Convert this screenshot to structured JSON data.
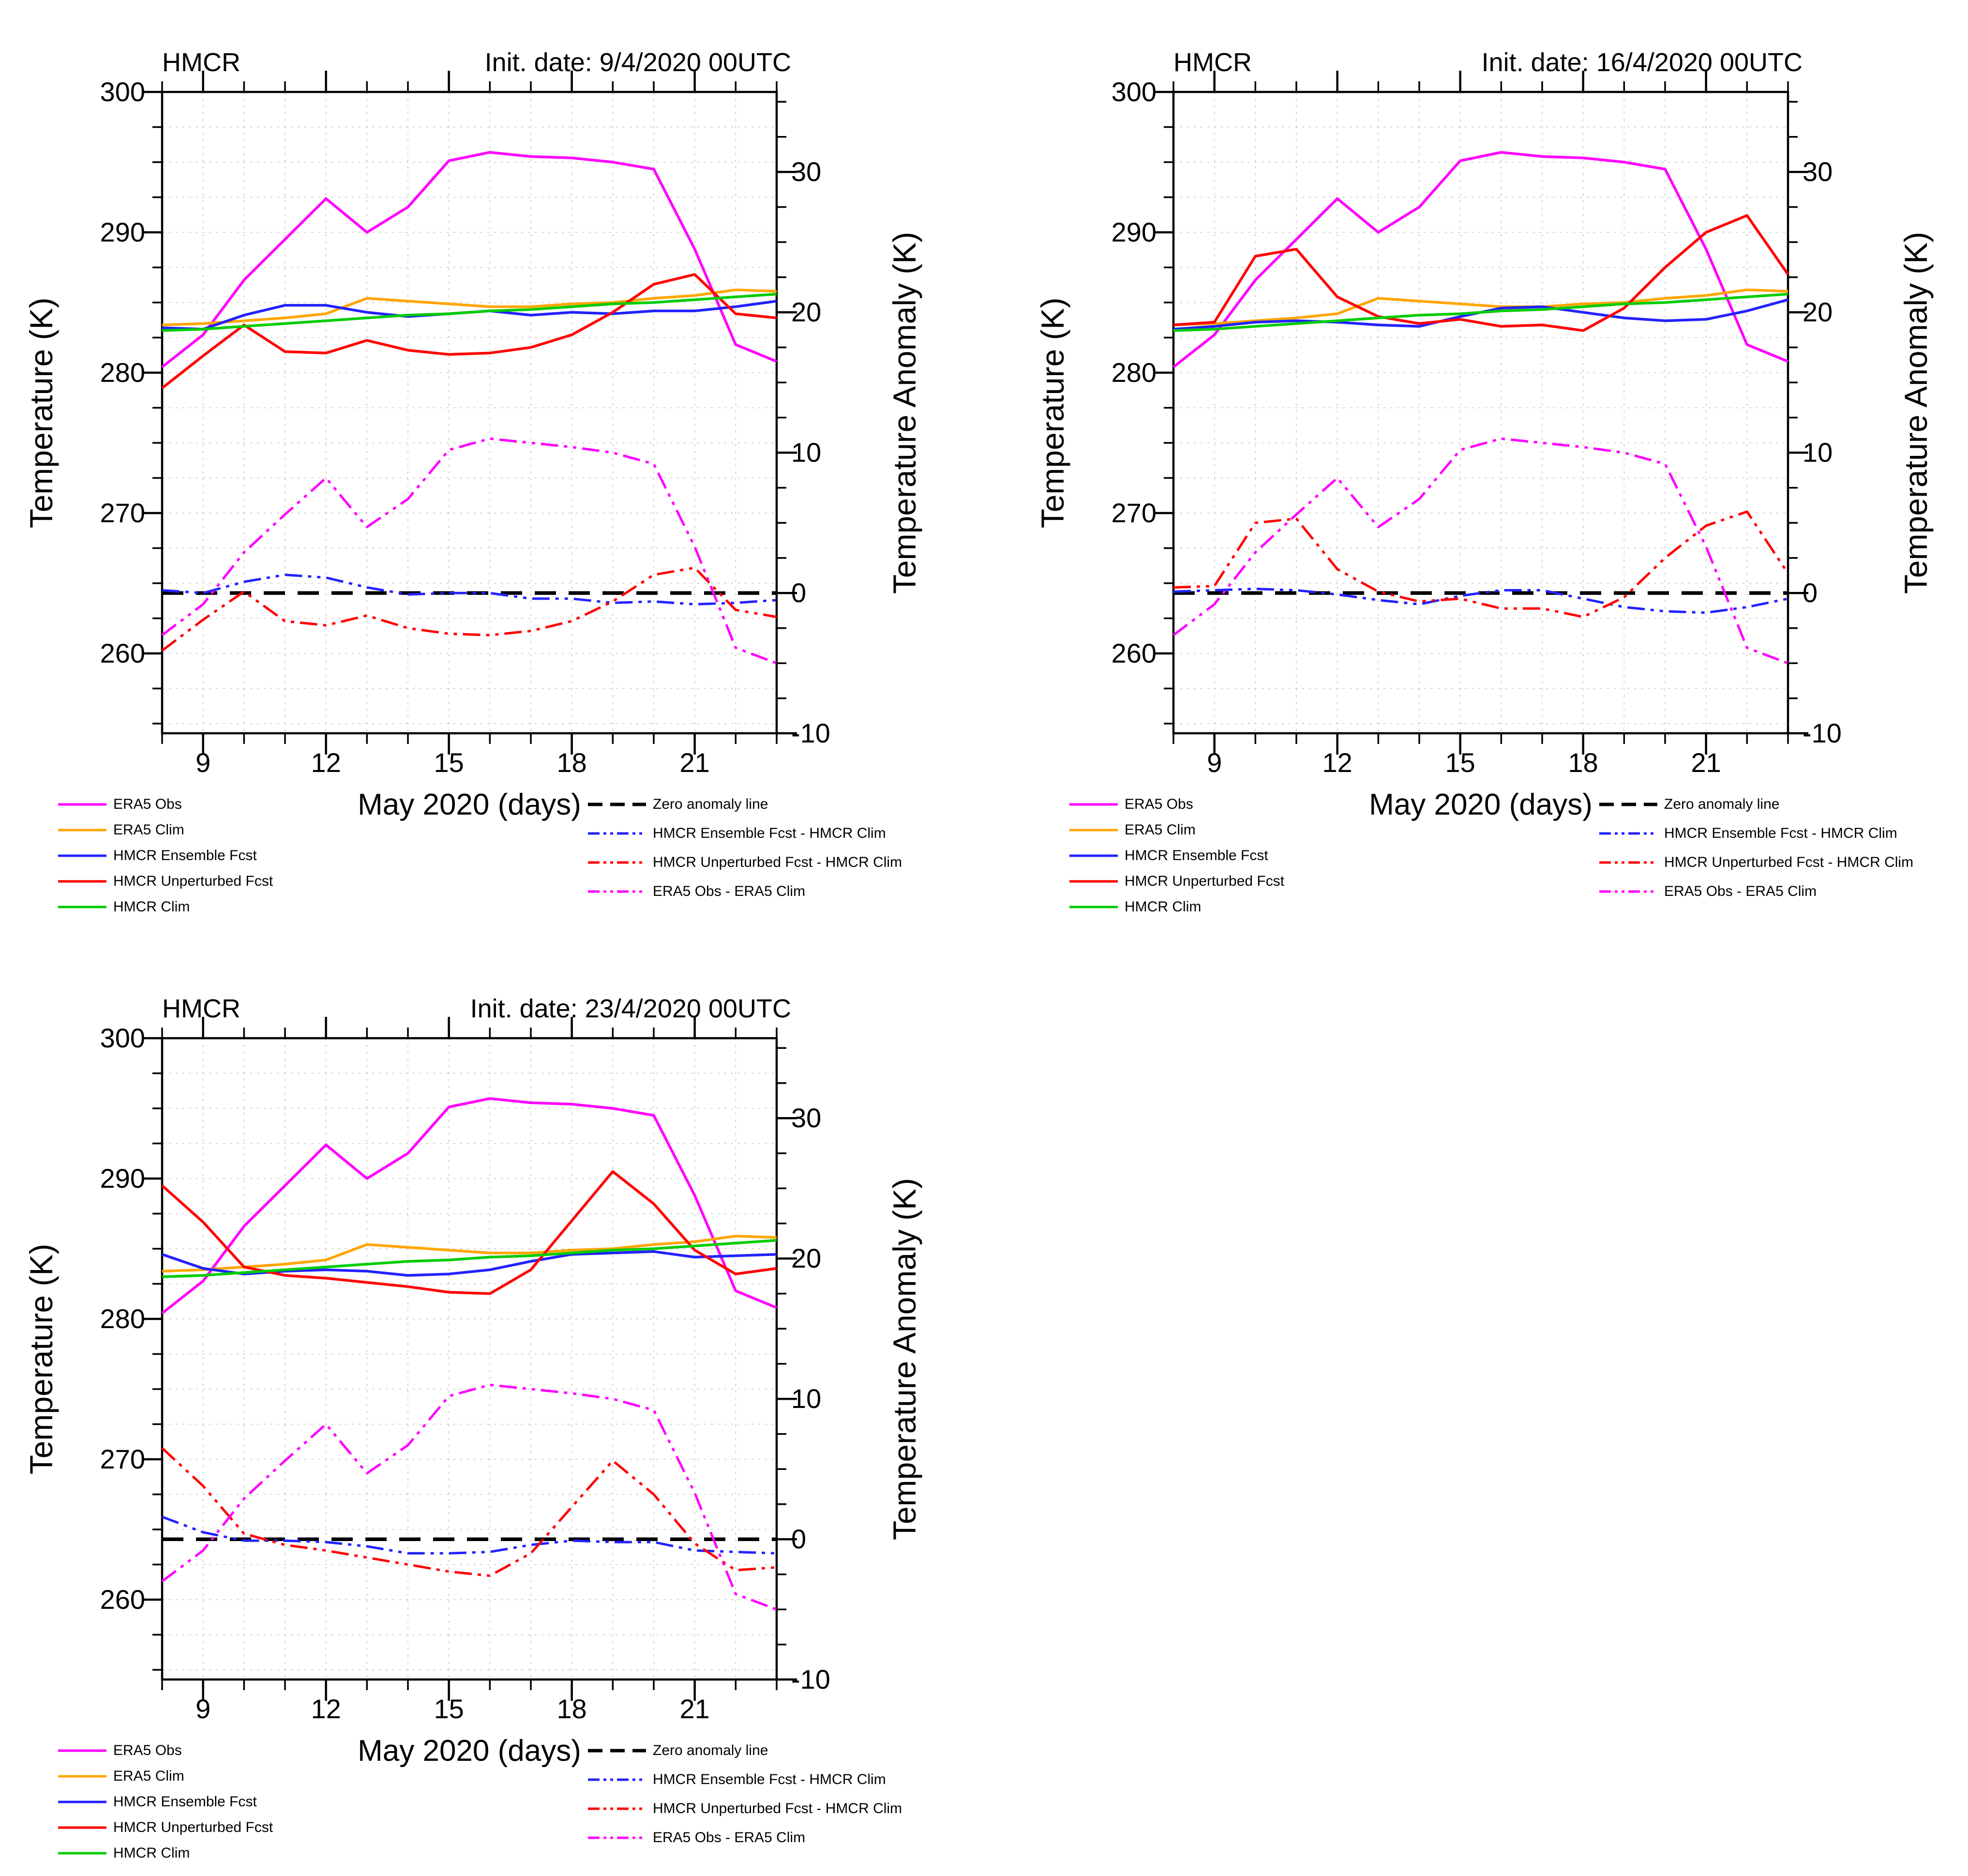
{
  "figure": {
    "description": "Three-panel temperature forecast verification plots",
    "panel_model_label": "HMCR"
  },
  "colors": {
    "magenta": "#ff00ff",
    "orange": "#ffa500",
    "blue": "#2222ff",
    "red": "#ff0000",
    "green": "#00cc00",
    "black": "#000000",
    "grid": "#c4c4c4"
  },
  "axes": {
    "y_left": {
      "title": "Temperature (K)",
      "tick_labels": [
        "300",
        "290",
        "280",
        "270",
        "260"
      ],
      "tick_values": [
        300,
        290,
        280,
        270,
        260
      ],
      "minor_step": 2.5,
      "range": [
        254.3,
        300
      ]
    },
    "y_right": {
      "title": "Temperature Anomaly (K)",
      "tick_labels": [
        "30",
        "20",
        "10",
        "0",
        "-10"
      ],
      "tick_values": [
        30,
        20,
        10,
        0,
        -10
      ],
      "minor_step": 2.5,
      "range": [
        -10,
        35.7
      ],
      "zero_anomaly_temp": 264.3
    },
    "x": {
      "title": "May 2020 (days)",
      "tick_labels": [
        "9",
        "12",
        "15",
        "18",
        "21"
      ],
      "tick_values": [
        9,
        12,
        15,
        18,
        21
      ],
      "range": [
        8,
        23
      ]
    }
  },
  "legend": {
    "left": [
      {
        "label": "ERA5 Obs",
        "color": "magenta",
        "style": "solid"
      },
      {
        "label": "ERA5 Clim",
        "color": "orange",
        "style": "solid"
      },
      {
        "label": "HMCR Ensemble Fcst",
        "color": "blue",
        "style": "solid"
      },
      {
        "label": "HMCR Unperturbed Fcst",
        "color": "red",
        "style": "solid"
      },
      {
        "label": "HMCR Clim",
        "color": "green",
        "style": "solid"
      }
    ],
    "right": [
      {
        "label": "Zero anomaly line",
        "color": "black",
        "style": "dashed"
      },
      {
        "label": "HMCR Ensemble Fcst - HMCR Clim",
        "color": "blue",
        "style": "dashdotdot"
      },
      {
        "label": "HMCR Unperturbed Fcst - HMCR Clim",
        "color": "red",
        "style": "dashdotdot"
      },
      {
        "label": "ERA5 Obs - ERA5 Clim",
        "color": "magenta",
        "style": "dashdotdot"
      }
    ]
  },
  "chart_data": [
    {
      "type": "line",
      "title_left": "HMCR",
      "title_right": "Init. date: 9/4/2020 00UTC",
      "xlabel": "May 2020 (days)",
      "ylabel_left": "Temperature (K)",
      "ylabel_right": "Temperature Anomaly (K)",
      "x": [
        8,
        9,
        10,
        11,
        12,
        13,
        14,
        15,
        16,
        17,
        18,
        19,
        20,
        21,
        22,
        23
      ],
      "ylim_left": [
        254.3,
        300
      ],
      "ylim_right": [
        -10,
        35.7
      ],
      "series": [
        {
          "name": "ERA5 Obs",
          "color": "magenta",
          "style": "solid",
          "axis": "left",
          "values": [
            280.4,
            282.7,
            286.6,
            289.5,
            292.4,
            290.0,
            291.8,
            295.1,
            295.7,
            295.4,
            295.3,
            295.0,
            294.5,
            288.8,
            282.0,
            280.8
          ]
        },
        {
          "name": "ERA5 Clim",
          "color": "orange",
          "style": "solid",
          "axis": "left",
          "values": [
            283.4,
            283.5,
            283.7,
            283.9,
            284.2,
            285.3,
            285.1,
            284.9,
            284.7,
            284.7,
            284.9,
            285.0,
            285.3,
            285.5,
            285.9,
            285.8
          ]
        },
        {
          "name": "HMCR Ensemble Fcst",
          "color": "blue",
          "style": "solid",
          "axis": "left",
          "values": [
            283.2,
            283.1,
            284.1,
            284.8,
            284.8,
            284.3,
            284.0,
            284.2,
            284.4,
            284.1,
            284.3,
            284.2,
            284.4,
            284.4,
            284.7,
            285.1
          ]
        },
        {
          "name": "HMCR Unperturbed Fcst",
          "color": "red",
          "style": "solid",
          "axis": "left",
          "values": [
            278.9,
            281.2,
            283.4,
            281.5,
            281.4,
            282.3,
            281.6,
            281.3,
            281.4,
            281.8,
            282.7,
            284.3,
            286.3,
            287.0,
            284.2,
            283.9
          ]
        },
        {
          "name": "HMCR Clim",
          "color": "green",
          "style": "solid",
          "axis": "left",
          "values": [
            283.0,
            283.1,
            283.3,
            283.5,
            283.7,
            283.9,
            284.1,
            284.2,
            284.4,
            284.5,
            284.7,
            284.9,
            285.0,
            285.2,
            285.4,
            285.6
          ]
        },
        {
          "name": "Zero anomaly line",
          "color": "black",
          "style": "dashed",
          "axis": "right",
          "values": [
            0,
            0,
            0,
            0,
            0,
            0,
            0,
            0,
            0,
            0,
            0,
            0,
            0,
            0,
            0,
            0
          ]
        },
        {
          "name": "HMCR Ensemble Fcst - HMCR Clim",
          "color": "blue",
          "style": "dashdotdot",
          "axis": "right",
          "values": [
            0.2,
            0.0,
            0.8,
            1.3,
            1.1,
            0.4,
            -0.1,
            0.0,
            0.0,
            -0.4,
            -0.4,
            -0.7,
            -0.6,
            -0.8,
            -0.7,
            -0.5
          ]
        },
        {
          "name": "HMCR Unperturbed Fcst - HMCR Clim",
          "color": "red",
          "style": "dashdotdot",
          "axis": "right",
          "values": [
            -4.1,
            -1.9,
            0.1,
            -2.0,
            -2.3,
            -1.6,
            -2.5,
            -2.9,
            -3.0,
            -2.7,
            -2.0,
            -0.6,
            1.3,
            1.8,
            -1.2,
            -1.7
          ]
        },
        {
          "name": "ERA5 Obs - ERA5 Clim",
          "color": "magenta",
          "style": "dashdotdot",
          "axis": "right",
          "values": [
            -3.0,
            -0.8,
            2.9,
            5.6,
            8.2,
            4.7,
            6.7,
            10.2,
            11.0,
            10.7,
            10.4,
            10.0,
            9.2,
            3.3,
            -3.9,
            -5.0
          ]
        }
      ]
    },
    {
      "type": "line",
      "title_left": "HMCR",
      "title_right": "Init. date: 16/4/2020 00UTC",
      "xlabel": "May 2020 (days)",
      "ylabel_left": "Temperature (K)",
      "ylabel_right": "Temperature Anomaly (K)",
      "x": [
        8,
        9,
        10,
        11,
        12,
        13,
        14,
        15,
        16,
        17,
        18,
        19,
        20,
        21,
        22,
        23
      ],
      "ylim_left": [
        254.3,
        300
      ],
      "ylim_right": [
        -10,
        35.7
      ],
      "series": [
        {
          "name": "ERA5 Obs",
          "color": "magenta",
          "style": "solid",
          "axis": "left",
          "values": [
            280.4,
            282.7,
            286.6,
            289.5,
            292.4,
            290.0,
            291.8,
            295.1,
            295.7,
            295.4,
            295.3,
            295.0,
            294.5,
            288.8,
            282.0,
            280.8
          ]
        },
        {
          "name": "ERA5 Clim",
          "color": "orange",
          "style": "solid",
          "axis": "left",
          "values": [
            283.4,
            283.5,
            283.7,
            283.9,
            284.2,
            285.3,
            285.1,
            284.9,
            284.7,
            284.7,
            284.9,
            285.0,
            285.3,
            285.5,
            285.9,
            285.8
          ]
        },
        {
          "name": "HMCR Ensemble Fcst",
          "color": "blue",
          "style": "solid",
          "axis": "left",
          "values": [
            283.1,
            283.3,
            283.6,
            283.7,
            283.6,
            283.4,
            283.3,
            284.0,
            284.6,
            284.7,
            284.3,
            283.9,
            283.7,
            283.8,
            284.4,
            285.2
          ]
        },
        {
          "name": "HMCR Unperturbed Fcst",
          "color": "red",
          "style": "solid",
          "axis": "left",
          "values": [
            283.4,
            283.6,
            288.3,
            288.8,
            285.4,
            284.0,
            283.5,
            283.8,
            283.3,
            283.4,
            283.0,
            284.6,
            287.5,
            290.0,
            291.2,
            287.0
          ]
        },
        {
          "name": "HMCR Clim",
          "color": "green",
          "style": "solid",
          "axis": "left",
          "values": [
            283.0,
            283.1,
            283.3,
            283.5,
            283.7,
            283.9,
            284.1,
            284.2,
            284.4,
            284.5,
            284.7,
            284.9,
            285.0,
            285.2,
            285.4,
            285.6
          ]
        },
        {
          "name": "Zero anomaly line",
          "color": "black",
          "style": "dashed",
          "axis": "right",
          "values": [
            0,
            0,
            0,
            0,
            0,
            0,
            0,
            0,
            0,
            0,
            0,
            0,
            0,
            0,
            0,
            0
          ]
        },
        {
          "name": "HMCR Ensemble Fcst - HMCR Clim",
          "color": "blue",
          "style": "dashdotdot",
          "axis": "right",
          "values": [
            0.1,
            0.2,
            0.3,
            0.2,
            -0.1,
            -0.5,
            -0.8,
            -0.2,
            0.2,
            0.2,
            -0.4,
            -1.0,
            -1.3,
            -1.4,
            -1.0,
            -0.4
          ]
        },
        {
          "name": "HMCR Unperturbed Fcst - HMCR Clim",
          "color": "red",
          "style": "dashdotdot",
          "axis": "right",
          "values": [
            0.4,
            0.5,
            5.0,
            5.3,
            1.7,
            0.1,
            -0.6,
            -0.4,
            -1.1,
            -1.1,
            -1.7,
            -0.3,
            2.5,
            4.8,
            5.8,
            1.4
          ]
        },
        {
          "name": "ERA5 Obs - ERA5 Clim",
          "color": "magenta",
          "style": "dashdotdot",
          "axis": "right",
          "values": [
            -3.0,
            -0.8,
            2.9,
            5.6,
            8.2,
            4.7,
            6.7,
            10.2,
            11.0,
            10.7,
            10.4,
            10.0,
            9.2,
            3.3,
            -3.9,
            -5.0
          ]
        }
      ]
    },
    {
      "type": "line",
      "title_left": "HMCR",
      "title_right": "Init. date: 23/4/2020 00UTC",
      "xlabel": "May 2020 (days)",
      "ylabel_left": "Temperature (K)",
      "ylabel_right": "Temperature Anomaly (K)",
      "x": [
        8,
        9,
        10,
        11,
        12,
        13,
        14,
        15,
        16,
        17,
        18,
        19,
        20,
        21,
        22,
        23
      ],
      "ylim_left": [
        254.3,
        300
      ],
      "ylim_right": [
        -10,
        35.7
      ],
      "series": [
        {
          "name": "ERA5 Obs",
          "color": "magenta",
          "style": "solid",
          "axis": "left",
          "values": [
            280.4,
            282.7,
            286.6,
            289.5,
            292.4,
            290.0,
            291.8,
            295.1,
            295.7,
            295.4,
            295.3,
            295.0,
            294.5,
            288.8,
            282.0,
            280.8
          ]
        },
        {
          "name": "ERA5 Clim",
          "color": "orange",
          "style": "solid",
          "axis": "left",
          "values": [
            283.4,
            283.5,
            283.7,
            283.9,
            284.2,
            285.3,
            285.1,
            284.9,
            284.7,
            284.7,
            284.9,
            285.0,
            285.3,
            285.5,
            285.9,
            285.8
          ]
        },
        {
          "name": "HMCR Ensemble Fcst",
          "color": "blue",
          "style": "solid",
          "axis": "left",
          "values": [
            284.6,
            283.6,
            283.2,
            283.4,
            283.5,
            283.4,
            283.1,
            283.2,
            283.5,
            284.1,
            284.6,
            284.7,
            284.8,
            284.4,
            284.5,
            284.6
          ]
        },
        {
          "name": "HMCR Unperturbed Fcst",
          "color": "red",
          "style": "solid",
          "axis": "left",
          "values": [
            289.5,
            286.9,
            283.7,
            283.1,
            282.9,
            282.6,
            282.3,
            281.9,
            281.8,
            283.5,
            287.0,
            290.5,
            288.2,
            284.9,
            283.2,
            283.6
          ]
        },
        {
          "name": "HMCR Clim",
          "color": "green",
          "style": "solid",
          "axis": "left",
          "values": [
            283.0,
            283.1,
            283.3,
            283.5,
            283.7,
            283.9,
            284.1,
            284.2,
            284.4,
            284.5,
            284.7,
            284.9,
            285.0,
            285.2,
            285.4,
            285.6
          ]
        },
        {
          "name": "Zero anomaly line",
          "color": "black",
          "style": "dashed",
          "axis": "right",
          "values": [
            0,
            0,
            0,
            0,
            0,
            0,
            0,
            0,
            0,
            0,
            0,
            0,
            0,
            0,
            0,
            0
          ]
        },
        {
          "name": "HMCR Ensemble Fcst - HMCR Clim",
          "color": "blue",
          "style": "dashdotdot",
          "axis": "right",
          "values": [
            1.6,
            0.5,
            -0.1,
            -0.1,
            -0.2,
            -0.5,
            -1.0,
            -1.0,
            -0.9,
            -0.4,
            -0.1,
            -0.2,
            -0.2,
            -0.8,
            -0.9,
            -1.0
          ]
        },
        {
          "name": "HMCR Unperturbed Fcst - HMCR Clim",
          "color": "red",
          "style": "dashdotdot",
          "axis": "right",
          "values": [
            6.5,
            3.8,
            0.4,
            -0.4,
            -0.8,
            -1.3,
            -1.8,
            -2.3,
            -2.6,
            -1.0,
            2.3,
            5.6,
            3.2,
            -0.3,
            -2.2,
            -2.0
          ]
        },
        {
          "name": "ERA5 Obs - ERA5 Clim",
          "color": "magenta",
          "style": "dashdotdot",
          "axis": "right",
          "values": [
            -3.0,
            -0.8,
            2.9,
            5.6,
            8.2,
            4.7,
            6.7,
            10.2,
            11.0,
            10.7,
            10.4,
            10.0,
            9.2,
            3.3,
            -3.9,
            -5.0
          ]
        }
      ]
    }
  ]
}
